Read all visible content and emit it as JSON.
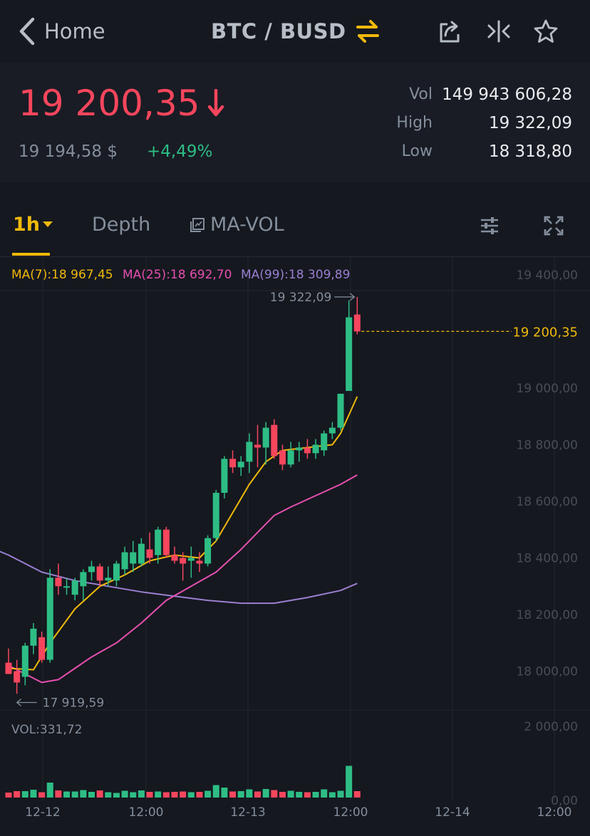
{
  "nav": {
    "back_label": "Home",
    "pair": "BTC / BUSD"
  },
  "price": {
    "last": "19 200,35",
    "usd": "19 194,58 $",
    "change": "+4,49%"
  },
  "stats": {
    "vol_label": "Vol",
    "vol": "149 943 606,28",
    "high_label": "High",
    "high": "19 322,09",
    "low_label": "Low",
    "low": "18 318,80"
  },
  "tabs": {
    "interval": "1h",
    "depth": "Depth",
    "indicator": "MA-VOL"
  },
  "ma": {
    "ma7": "MA(7):18 967,45",
    "ma25": "MA(25):18 692,70",
    "ma99": "MA(99):18 309,89"
  },
  "colors": {
    "up": "#2ebd85",
    "down": "#f6465d",
    "accent": "#f0b90b",
    "ma7": "#f0b90b",
    "ma25": "#e64fb0",
    "ma99": "#9b7fd1"
  },
  "chart_data": {
    "type": "candlestick",
    "price_axis": [
      "19 400,00",
      "19 000,00",
      "18 800,00",
      "18 600,00",
      "18 400,00",
      "18 200,00",
      "18 000,00"
    ],
    "current_price_label": "19 200,35",
    "current_price": 19200.35,
    "high_label": "19 322,09",
    "high": 19322.09,
    "low_label": "17 919,59",
    "low": 17919.59,
    "vol_label": "VOL:331,72",
    "vol_axis": [
      "2 000,00",
      "0,00"
    ],
    "vol_max": 2000,
    "time_axis": [
      "12-12",
      "12:00",
      "12-13",
      "12:00",
      "12-14",
      "12:00"
    ],
    "candles": [
      {
        "o": 18030,
        "h": 18080,
        "l": 17990,
        "c": 17990
      },
      {
        "o": 18000,
        "h": 18040,
        "l": 17920,
        "c": 17960
      },
      {
        "o": 17980,
        "h": 18100,
        "l": 17950,
        "c": 18090
      },
      {
        "o": 18090,
        "h": 18170,
        "l": 18060,
        "c": 18150
      },
      {
        "o": 18120,
        "h": 18140,
        "l": 18030,
        "c": 18040
      },
      {
        "o": 18040,
        "h": 18360,
        "l": 18030,
        "c": 18330
      },
      {
        "o": 18330,
        "h": 18380,
        "l": 18270,
        "c": 18300
      },
      {
        "o": 18300,
        "h": 18330,
        "l": 18270,
        "c": 18300
      },
      {
        "o": 18270,
        "h": 18330,
        "l": 18250,
        "c": 18320
      },
      {
        "o": 18300,
        "h": 18360,
        "l": 18250,
        "c": 18350
      },
      {
        "o": 18350,
        "h": 18390,
        "l": 18320,
        "c": 18370
      },
      {
        "o": 18370,
        "h": 18380,
        "l": 18300,
        "c": 18320
      },
      {
        "o": 18320,
        "h": 18370,
        "l": 18300,
        "c": 18330
      },
      {
        "o": 18320,
        "h": 18390,
        "l": 18300,
        "c": 18380
      },
      {
        "o": 18360,
        "h": 18440,
        "l": 18340,
        "c": 18420
      },
      {
        "o": 18380,
        "h": 18460,
        "l": 18350,
        "c": 18420
      },
      {
        "o": 18380,
        "h": 18470,
        "l": 18370,
        "c": 18450
      },
      {
        "o": 18430,
        "h": 18490,
        "l": 18380,
        "c": 18400
      },
      {
        "o": 18410,
        "h": 18510,
        "l": 18380,
        "c": 18500
      },
      {
        "o": 18500,
        "h": 18510,
        "l": 18400,
        "c": 18410
      },
      {
        "o": 18410,
        "h": 18440,
        "l": 18380,
        "c": 18390
      },
      {
        "o": 18400,
        "h": 18420,
        "l": 18320,
        "c": 18380
      },
      {
        "o": 18390,
        "h": 18440,
        "l": 18330,
        "c": 18400
      },
      {
        "o": 18390,
        "h": 18420,
        "l": 18350,
        "c": 18380
      },
      {
        "o": 18380,
        "h": 18480,
        "l": 18370,
        "c": 18470
      },
      {
        "o": 18470,
        "h": 18640,
        "l": 18460,
        "c": 18630
      },
      {
        "o": 18630,
        "h": 18760,
        "l": 18610,
        "c": 18750
      },
      {
        "o": 18750,
        "h": 18780,
        "l": 18700,
        "c": 18720
      },
      {
        "o": 18720,
        "h": 18760,
        "l": 18690,
        "c": 18740
      },
      {
        "o": 18740,
        "h": 18840,
        "l": 18700,
        "c": 18810
      },
      {
        "o": 18800,
        "h": 18870,
        "l": 18720,
        "c": 18790
      },
      {
        "o": 18790,
        "h": 18880,
        "l": 18730,
        "c": 18860
      },
      {
        "o": 18870,
        "h": 18890,
        "l": 18750,
        "c": 18760
      },
      {
        "o": 18780,
        "h": 18800,
        "l": 18710,
        "c": 18730
      },
      {
        "o": 18730,
        "h": 18810,
        "l": 18720,
        "c": 18780
      },
      {
        "o": 18780,
        "h": 18810,
        "l": 18740,
        "c": 18790
      },
      {
        "o": 18790,
        "h": 18820,
        "l": 18750,
        "c": 18770
      },
      {
        "o": 18770,
        "h": 18820,
        "l": 18750,
        "c": 18800
      },
      {
        "o": 18780,
        "h": 18850,
        "l": 18760,
        "c": 18840
      },
      {
        "o": 18840,
        "h": 18880,
        "l": 18820,
        "c": 18860
      },
      {
        "o": 18860,
        "h": 18980,
        "l": 18850,
        "c": 18980
      },
      {
        "o": 18990,
        "h": 19310,
        "l": 18990,
        "c": 19250
      },
      {
        "o": 19260,
        "h": 19322,
        "l": 19190,
        "c": 19200
      }
    ],
    "volumes": [
      140,
      180,
      180,
      220,
      150,
      420,
      200,
      170,
      170,
      210,
      160,
      200,
      150,
      130,
      190,
      150,
      200,
      160,
      170,
      150,
      160,
      170,
      150,
      160,
      190,
      350,
      280,
      170,
      180,
      230,
      170,
      240,
      210,
      160,
      190,
      160,
      150,
      160,
      230,
      150,
      190,
      890,
      180
    ],
    "ma7": [
      [
        0,
        18010
      ],
      [
        3,
        18005
      ],
      [
        5,
        18100
      ],
      [
        8,
        18220
      ],
      [
        11,
        18300
      ],
      [
        14,
        18340
      ],
      [
        17,
        18390
      ],
      [
        20,
        18410
      ],
      [
        23,
        18400
      ],
      [
        25,
        18460
      ],
      [
        27,
        18560
      ],
      [
        29,
        18660
      ],
      [
        31,
        18740
      ],
      [
        33,
        18780
      ],
      [
        36,
        18790
      ],
      [
        39,
        18800
      ],
      [
        40,
        18840
      ],
      [
        42,
        18970
      ]
    ],
    "ma25": [
      [
        0,
        18020
      ],
      [
        2,
        17990
      ],
      [
        4,
        17960
      ],
      [
        6,
        17970
      ],
      [
        8,
        18010
      ],
      [
        10,
        18050
      ],
      [
        13,
        18100
      ],
      [
        16,
        18170
      ],
      [
        19,
        18250
      ],
      [
        22,
        18300
      ],
      [
        25,
        18350
      ],
      [
        28,
        18430
      ],
      [
        30,
        18490
      ],
      [
        32,
        18550
      ],
      [
        34,
        18580
      ],
      [
        37,
        18620
      ],
      [
        40,
        18660
      ],
      [
        42,
        18693
      ]
    ],
    "ma99": [
      [
        -5,
        18470
      ],
      [
        0,
        18410
      ],
      [
        4,
        18350
      ],
      [
        8,
        18320
      ],
      [
        12,
        18300
      ],
      [
        16,
        18280
      ],
      [
        20,
        18265
      ],
      [
        24,
        18250
      ],
      [
        28,
        18240
      ],
      [
        32,
        18240
      ],
      [
        36,
        18260
      ],
      [
        40,
        18285
      ],
      [
        42,
        18310
      ]
    ]
  }
}
